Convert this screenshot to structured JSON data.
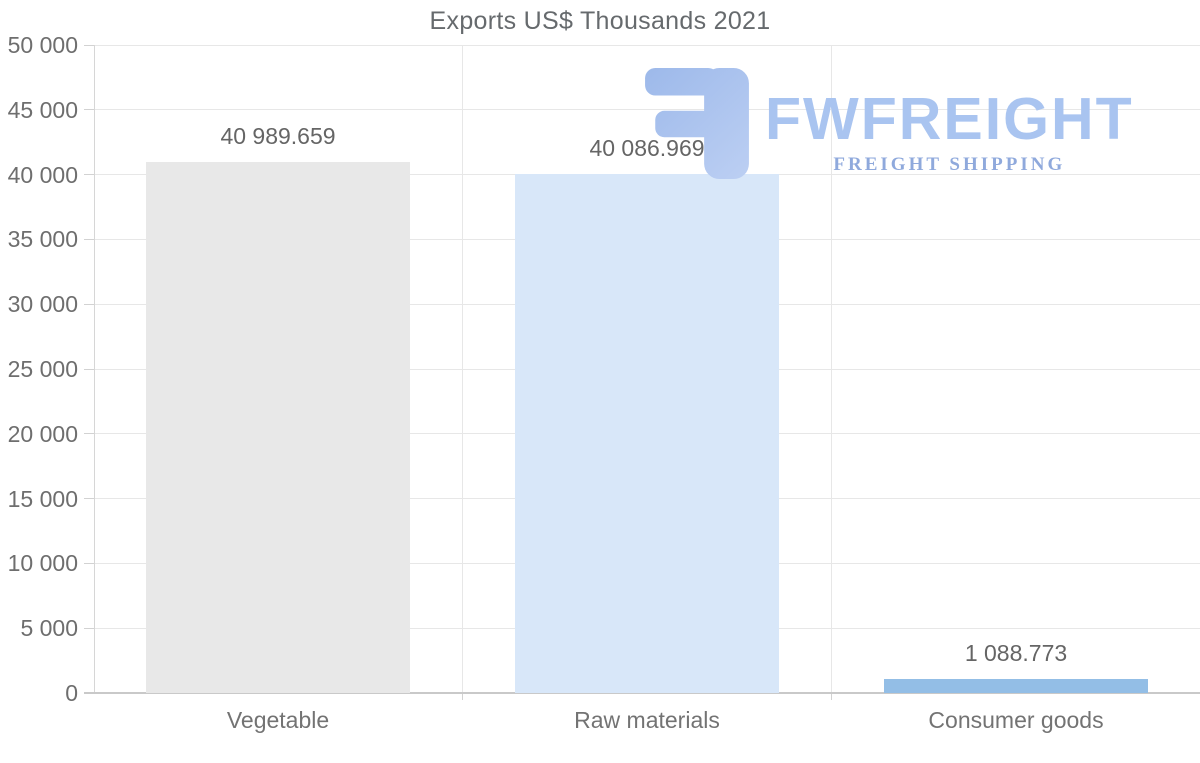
{
  "title": "Exports US$ Thousands 2021",
  "watermark": {
    "brand": "FWFREIGHT",
    "tagline": "FREIGHT SHIPPING",
    "brand_color": "#a9c4f0",
    "tagline_color": "#8fa9dc",
    "icon_color_start": "#9db9ea",
    "icon_color_end": "#bccff3"
  },
  "chart_data": {
    "type": "bar",
    "title": "Exports US$ Thousands 2021",
    "categories": [
      "Vegetable",
      "Raw materials",
      "Consumer goods"
    ],
    "values": [
      40989.659,
      40086.969,
      1088.773
    ],
    "value_labels": [
      "40 989.659",
      "40 086.969",
      "1 088.773"
    ],
    "bar_colors": [
      "#e8e8e8",
      "#d8e7f9",
      "#93bee6"
    ],
    "ylim": [
      0,
      50000
    ],
    "ytick_step": 5000,
    "ytick_labels": [
      "0",
      "5 000",
      "10 000",
      "15 000",
      "20 000",
      "25 000",
      "30 000",
      "35 000",
      "40 000",
      "45 000",
      "50 000"
    ],
    "xlabel": "",
    "ylabel": "",
    "grid": true,
    "legend": false
  },
  "colors": {
    "text": "#6e6e6e",
    "grid": "#e7e7e7",
    "axis": "#c9c9c9"
  }
}
